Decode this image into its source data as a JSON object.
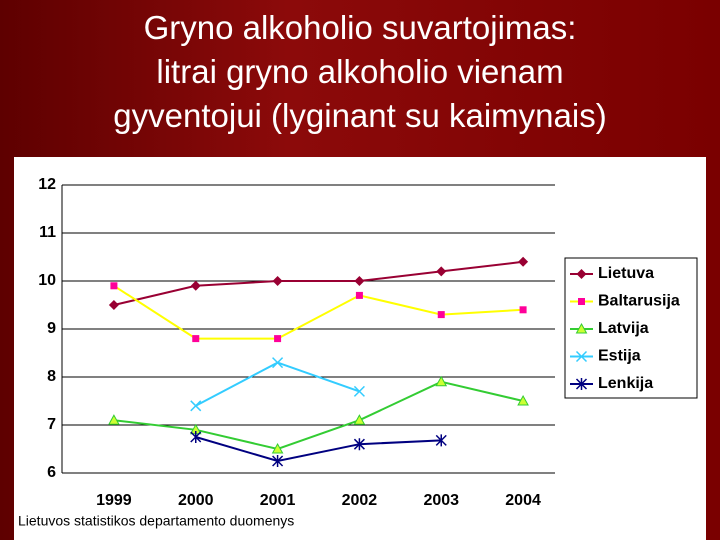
{
  "chart_data": {
    "type": "line",
    "title": [
      "Gryno alkoholio suvartojimas:",
      "litrai gryno alkoholio vienam",
      "gyventojui (lyginant su kaimynais)"
    ],
    "source": "Lietuvos statistikos departamento duomenys",
    "categories": [
      "1999",
      "2000",
      "2001",
      "2002",
      "2003",
      "2004"
    ],
    "series": [
      {
        "name": "Lietuva",
        "color": "#990033",
        "marker_color": "#990033",
        "marker": "diamond",
        "values": [
          9.5,
          9.9,
          10.0,
          10.0,
          10.2,
          10.4
        ]
      },
      {
        "name": "Baltarusija",
        "color": "#ffff00",
        "marker_color": "#ff0099",
        "marker": "square",
        "values": [
          9.9,
          8.8,
          8.8,
          9.7,
          9.3,
          9.4
        ]
      },
      {
        "name": "Latvija",
        "color": "#33cc33",
        "marker_color": "#ccff33",
        "marker": "triangle",
        "values": [
          7.1,
          6.9,
          6.5,
          7.1,
          7.9,
          7.5
        ]
      },
      {
        "name": "Estija",
        "color": "#33ccff",
        "marker_color": "#33ccff",
        "marker": "x",
        "values": [
          null,
          7.4,
          8.3,
          7.7,
          null,
          null
        ]
      },
      {
        "name": "Lenkija",
        "color": "#000080",
        "marker_color": "#000080",
        "marker": "star",
        "values": [
          null,
          6.75,
          6.25,
          6.6,
          6.68,
          null
        ]
      }
    ],
    "ylim": [
      6,
      12
    ],
    "yticks": [
      6,
      7,
      8,
      9,
      10,
      11,
      12
    ],
    "grid": true,
    "legend": "right"
  }
}
